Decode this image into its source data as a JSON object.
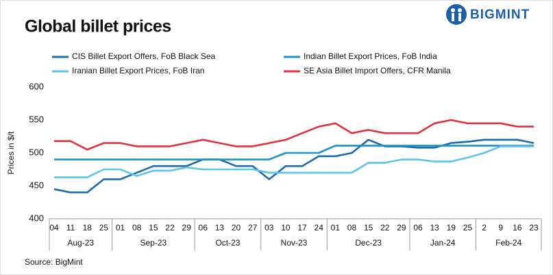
{
  "chart_data": {
    "type": "line",
    "title": "Global billet prices",
    "brand": "BIGMINT",
    "y_label": "Prices in $/t",
    "source": "Source: BigMint",
    "categories": [
      "04",
      "11",
      "18",
      "25",
      "01",
      "08",
      "15",
      "22",
      "29",
      "06",
      "13",
      "20",
      "27",
      "03",
      "10",
      "17",
      "24",
      "01",
      "08",
      "15",
      "22",
      "29",
      "06",
      "13",
      "19",
      "25",
      "2",
      "9",
      "16",
      "23"
    ],
    "month_labels": [
      "Aug-23",
      "Sep-23",
      "Oct-23",
      "Nov-23",
      "Dec-23",
      "Jan-24",
      "Feb-24"
    ],
    "ylim": [
      400,
      600
    ],
    "yticks": [
      400,
      450,
      500,
      550,
      600
    ],
    "grid": false,
    "series": [
      {
        "name": "CIS Billet Export Offers, FoB Black Sea",
        "color": "#1a6aad",
        "values": [
          445,
          440,
          440,
          460,
          460,
          470,
          480,
          480,
          480,
          490,
          490,
          480,
          480,
          460,
          480,
          480,
          495,
          495,
          500,
          520,
          510,
          510,
          508,
          508,
          515,
          517,
          520,
          520,
          520,
          515
        ]
      },
      {
        "name": "Indian Billet Export Prices, FoB India",
        "color": "#1c93cc",
        "values": [
          490,
          490,
          490,
          490,
          490,
          490,
          490,
          490,
          490,
          490,
          490,
          490,
          490,
          490,
          500,
          500,
          500,
          511,
          511,
          511,
          511,
          511,
          511,
          511,
          511,
          511,
          511,
          511,
          511,
          511
        ]
      },
      {
        "name": "Iranian Billet Export Prices, FoB Iran",
        "color": "#5cc3ee",
        "values": [
          463,
          463,
          463,
          475,
          475,
          465,
          473,
          473,
          478,
          475,
          475,
          475,
          475,
          470,
          470,
          470,
          470,
          470,
          470,
          485,
          485,
          490,
          490,
          487,
          487,
          493,
          500,
          510,
          510,
          510
        ]
      },
      {
        "name": "SE Asia Billet Import Offers, CFR Manila",
        "color": "#e0313c",
        "values": [
          518,
          518,
          505,
          515,
          515,
          510,
          510,
          510,
          515,
          520,
          515,
          510,
          510,
          515,
          520,
          530,
          540,
          545,
          530,
          535,
          530,
          530,
          530,
          545,
          550,
          545,
          545,
          545,
          540,
          540
        ]
      }
    ]
  }
}
